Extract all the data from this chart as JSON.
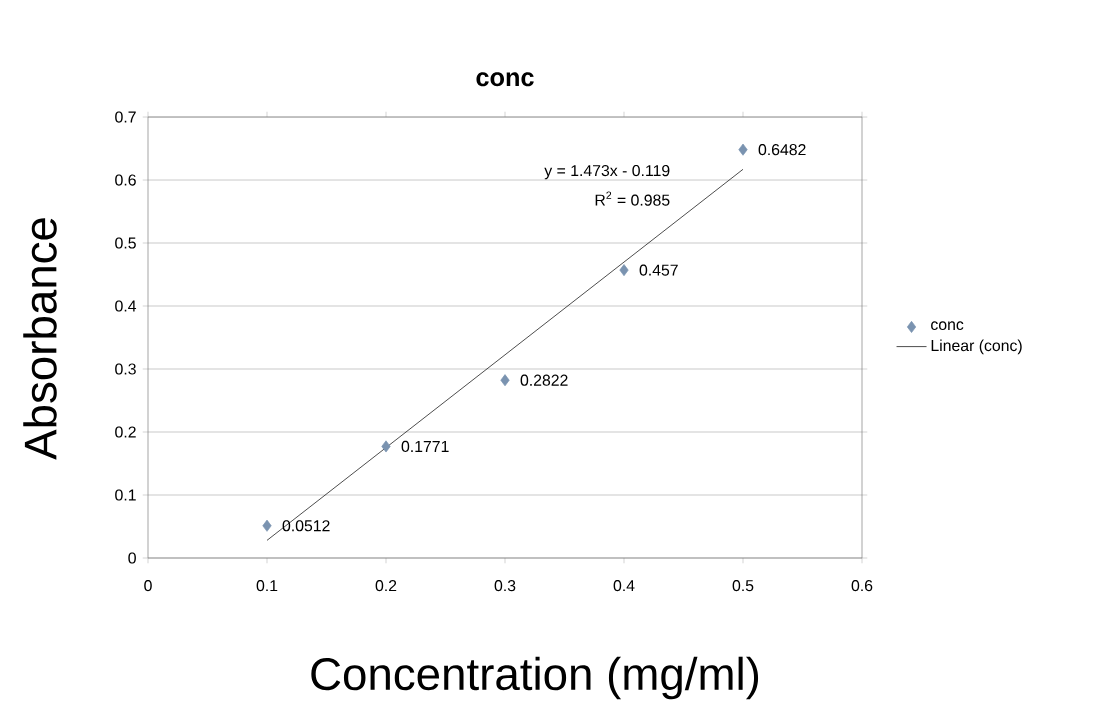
{
  "chart_data": {
    "type": "scatter",
    "title": "conc",
    "xlabel": "Concentration (mg/ml)",
    "ylabel": "Absorbance",
    "annotations": [
      "y = 1.473x - 0.119",
      "R$^{2}$ = 0.985"
    ],
    "series": [
      {
        "name": "conc",
        "marker": "diamond",
        "color": "#7a93b0",
        "x": [
          0.1,
          0.2,
          0.3,
          0.4,
          0.5
        ],
        "values": [
          0.0512,
          0.1771,
          0.2822,
          0.457,
          0.6482
        ],
        "value_labels": [
          "0.0512",
          "0.1771",
          "0.2822",
          "0.457",
          "0.6482"
        ]
      },
      {
        "name": "Linear (conc)",
        "type": "line",
        "marker": "none",
        "color": "#000000",
        "x": [
          0.1,
          0.5
        ],
        "values": [
          0.028,
          0.617
        ]
      }
    ],
    "xlim": [
      0,
      0.6
    ],
    "ylim": [
      0,
      0.7
    ],
    "xticks": [
      0,
      0.1,
      0.2,
      0.3,
      0.4,
      0.5,
      0.6
    ],
    "yticks": [
      0,
      0.1,
      0.2,
      0.3,
      0.4,
      0.5,
      0.6,
      0.7
    ],
    "grid": "y",
    "legend": "right",
    "line_style": "solid"
  }
}
